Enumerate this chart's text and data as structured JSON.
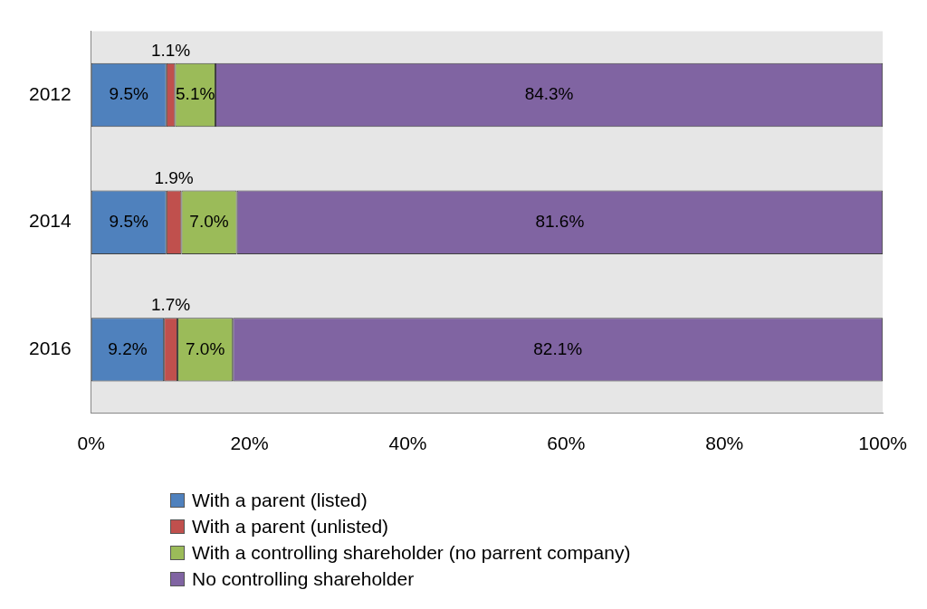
{
  "chart_data": {
    "type": "bar",
    "orientation": "horizontal",
    "stacked": true,
    "categories": [
      "2012",
      "2014",
      "2016"
    ],
    "series": [
      {
        "name": "With a parent (listed)",
        "color": "#4f81bd",
        "values": [
          9.5,
          9.5,
          9.2
        ],
        "value_labels": [
          "9.5%",
          "9.5%",
          "9.2%"
        ]
      },
      {
        "name": "With a parent (unlisted)",
        "color": "#c0504d",
        "values": [
          1.1,
          1.9,
          1.7
        ],
        "value_labels": [
          "1.1%",
          "1.9%",
          "1.7%"
        ]
      },
      {
        "name": "With a controlling shareholder (no parrent company)",
        "color": "#9bbb59",
        "values": [
          5.1,
          7.0,
          7.0
        ],
        "value_labels": [
          "5.1%",
          "7.0%",
          "7.0%"
        ]
      },
      {
        "name": "No controlling shareholder",
        "color": "#8064a2",
        "values": [
          84.3,
          81.6,
          82.1
        ],
        "value_labels": [
          "84.3%",
          "81.6%",
          "82.1%"
        ]
      }
    ],
    "xlim": [
      0,
      100
    ],
    "xticks": [
      {
        "value": 0,
        "label": "0%"
      },
      {
        "value": 20,
        "label": "20%"
      },
      {
        "value": 40,
        "label": "40%"
      },
      {
        "value": 60,
        "label": "60%"
      },
      {
        "value": 80,
        "label": "80%"
      },
      {
        "value": 100,
        "label": "100%"
      }
    ],
    "grid": false,
    "legend": "bottom"
  }
}
